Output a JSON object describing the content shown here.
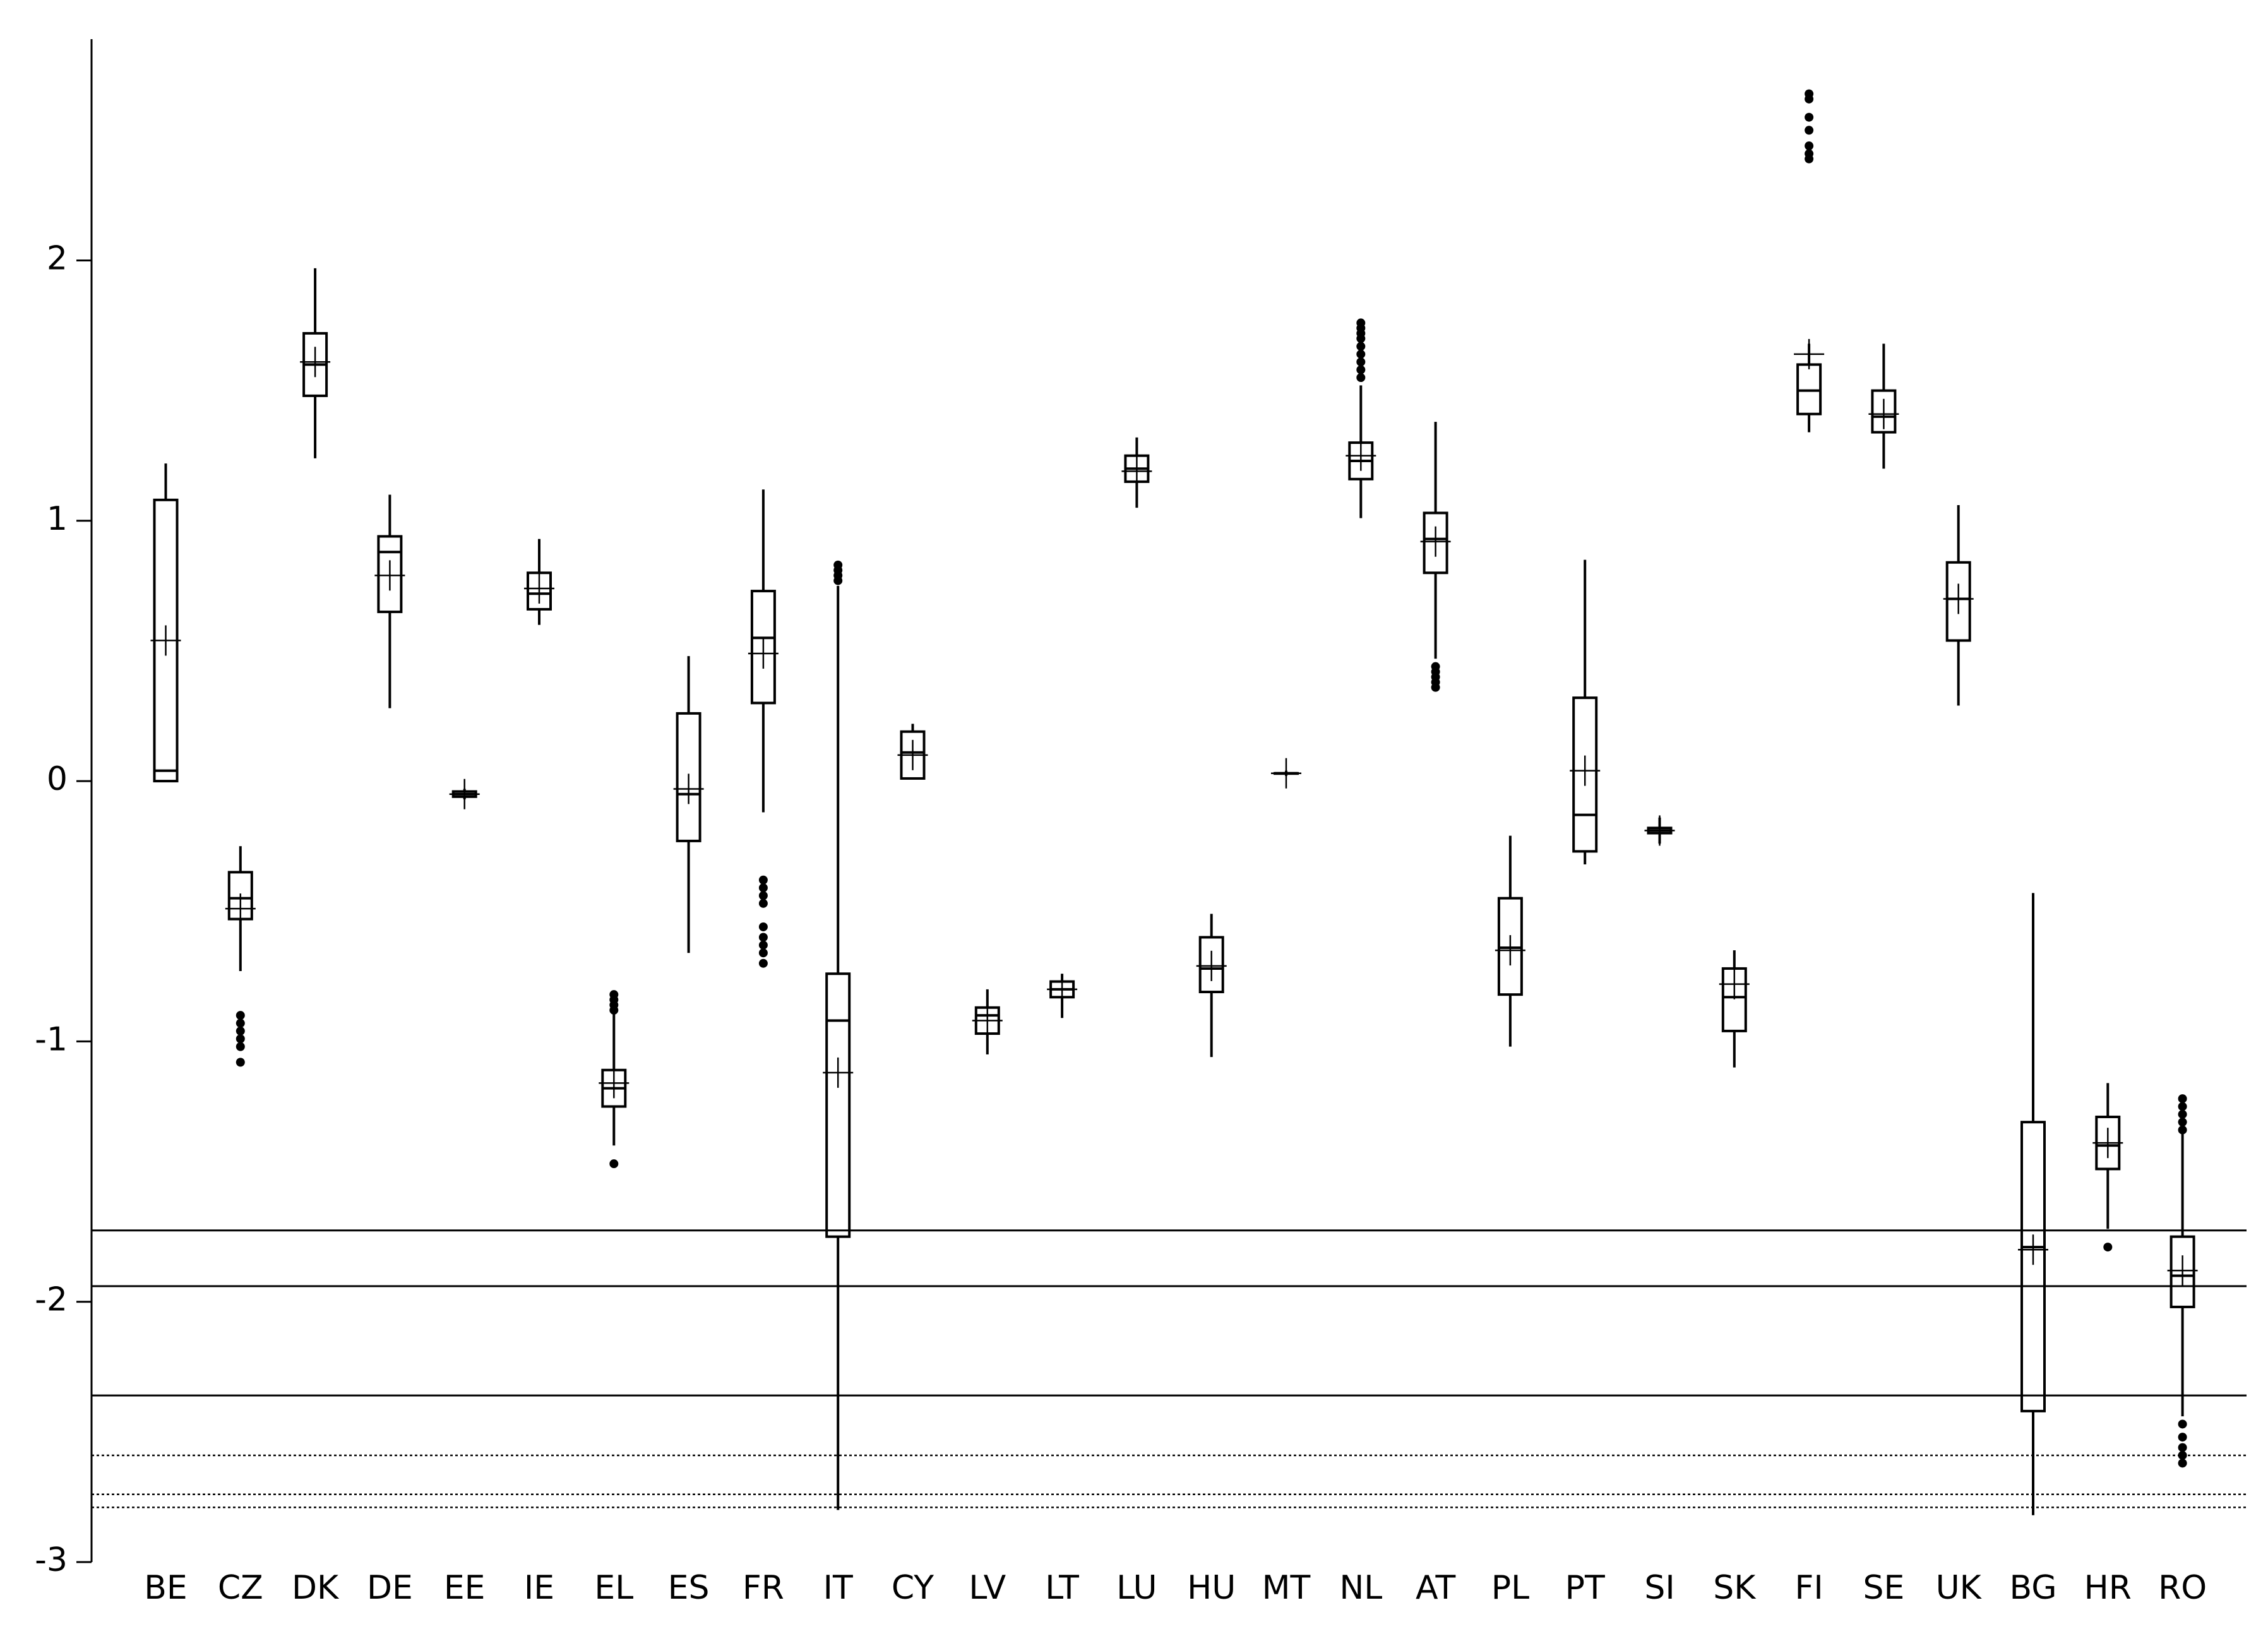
{
  "chart_data": {
    "type": "box",
    "categories": [
      "BE",
      "CZ",
      "DK",
      "DE",
      "EE",
      "IE",
      "EL",
      "ES",
      "FR",
      "IT",
      "CY",
      "LV",
      "LT",
      "LU",
      "HU",
      "MT",
      "NL",
      "AT",
      "PL",
      "PT",
      "SI",
      "SK",
      "FI",
      "SE",
      "UK",
      "BG",
      "HR",
      "RO"
    ],
    "boxes": [
      {
        "whisker_low": 0.0,
        "q1": 0.0,
        "median": 0.04,
        "q3": 1.08,
        "whisker_high": 1.22,
        "mean": 0.54,
        "outliers": []
      },
      {
        "whisker_low": -0.73,
        "q1": -0.53,
        "median": -0.45,
        "q3": -0.35,
        "whisker_high": -0.25,
        "mean": -0.49,
        "outliers": [
          -0.9,
          -0.93,
          -0.96,
          -0.99,
          -1.02,
          -1.08
        ]
      },
      {
        "whisker_low": 1.24,
        "q1": 1.48,
        "median": 1.6,
        "q3": 1.72,
        "whisker_high": 1.97,
        "mean": 1.61,
        "outliers": []
      },
      {
        "whisker_low": 0.28,
        "q1": 0.65,
        "median": 0.88,
        "q3": 0.94,
        "whisker_high": 1.1,
        "mean": 0.79,
        "outliers": []
      },
      {
        "whisker_low": -0.07,
        "q1": -0.06,
        "median": -0.05,
        "q3": -0.04,
        "whisker_high": -0.03,
        "mean": -0.05,
        "outliers": []
      },
      {
        "whisker_low": 0.6,
        "q1": 0.66,
        "median": 0.72,
        "q3": 0.8,
        "whisker_high": 0.93,
        "mean": 0.74,
        "outliers": []
      },
      {
        "whisker_low": -1.4,
        "q1": -1.25,
        "median": -1.18,
        "q3": -1.11,
        "whisker_high": -0.89,
        "mean": -1.16,
        "outliers": [
          -0.82,
          -0.84,
          -0.86,
          -0.88,
          -1.47
        ]
      },
      {
        "whisker_low": -0.66,
        "q1": -0.23,
        "median": -0.05,
        "q3": 0.26,
        "whisker_high": 0.48,
        "mean": -0.03,
        "outliers": []
      },
      {
        "whisker_low": -0.12,
        "q1": 0.3,
        "median": 0.55,
        "q3": 0.73,
        "whisker_high": 1.12,
        "mean": 0.49,
        "outliers": [
          -0.38,
          -0.41,
          -0.44,
          -0.47,
          -0.56,
          -0.6,
          -0.63,
          -0.66,
          -0.7
        ]
      },
      {
        "whisker_low": -2.8,
        "q1": -1.75,
        "median": -0.92,
        "q3": -0.74,
        "whisker_high": 0.75,
        "mean": -1.12,
        "outliers": [
          0.77,
          0.79,
          0.81,
          0.83
        ]
      },
      {
        "whisker_low": 0.01,
        "q1": 0.01,
        "median": 0.11,
        "q3": 0.19,
        "whisker_high": 0.22,
        "mean": 0.1,
        "outliers": []
      },
      {
        "whisker_low": -1.05,
        "q1": -0.97,
        "median": -0.9,
        "q3": -0.87,
        "whisker_high": -0.8,
        "mean": -0.92,
        "outliers": []
      },
      {
        "whisker_low": -0.91,
        "q1": -0.83,
        "median": -0.8,
        "q3": -0.77,
        "whisker_high": -0.74,
        "mean": -0.8,
        "outliers": []
      },
      {
        "whisker_low": 1.05,
        "q1": 1.15,
        "median": 1.2,
        "q3": 1.25,
        "whisker_high": 1.32,
        "mean": 1.19,
        "outliers": []
      },
      {
        "whisker_low": -1.06,
        "q1": -0.81,
        "median": -0.72,
        "q3": -0.6,
        "whisker_high": -0.51,
        "mean": -0.71,
        "outliers": []
      },
      {
        "whisker_low": 0.02,
        "q1": 0.03,
        "median": 0.03,
        "q3": 0.03,
        "whisker_high": 0.04,
        "mean": 0.03,
        "outliers": []
      },
      {
        "whisker_low": 1.01,
        "q1": 1.16,
        "median": 1.23,
        "q3": 1.3,
        "whisker_high": 1.52,
        "mean": 1.25,
        "outliers": [
          1.55,
          1.58,
          1.61,
          1.64,
          1.67,
          1.7,
          1.72,
          1.74,
          1.76
        ]
      },
      {
        "whisker_low": 0.47,
        "q1": 0.8,
        "median": 0.93,
        "q3": 1.03,
        "whisker_high": 1.38,
        "mean": 0.92,
        "outliers": [
          0.36,
          0.38,
          0.4,
          0.42,
          0.44
        ]
      },
      {
        "whisker_low": -1.02,
        "q1": -0.82,
        "median": -0.64,
        "q3": -0.45,
        "whisker_high": -0.21,
        "mean": -0.65,
        "outliers": []
      },
      {
        "whisker_low": -0.32,
        "q1": -0.27,
        "median": -0.13,
        "q3": 0.32,
        "whisker_high": 0.85,
        "mean": 0.04,
        "outliers": []
      },
      {
        "whisker_low": -0.24,
        "q1": -0.2,
        "median": -0.19,
        "q3": -0.18,
        "whisker_high": -0.14,
        "mean": -0.19,
        "outliers": []
      },
      {
        "whisker_low": -1.1,
        "q1": -0.96,
        "median": -0.83,
        "q3": -0.72,
        "whisker_high": -0.65,
        "mean": -0.78,
        "outliers": []
      },
      {
        "whisker_low": 1.34,
        "q1": 1.41,
        "median": 1.5,
        "q3": 1.6,
        "whisker_high": 1.68,
        "mean": 1.64,
        "outliers": [
          2.39,
          2.41,
          2.44,
          2.5,
          2.55,
          2.62,
          2.64
        ]
      },
      {
        "whisker_low": 1.2,
        "q1": 1.34,
        "median": 1.4,
        "q3": 1.5,
        "whisker_high": 1.68,
        "mean": 1.41,
        "outliers": []
      },
      {
        "whisker_low": 0.29,
        "q1": 0.54,
        "median": 0.7,
        "q3": 0.84,
        "whisker_high": 1.06,
        "mean": 0.7,
        "outliers": []
      },
      {
        "whisker_low": -2.82,
        "q1": -2.42,
        "median": -1.79,
        "q3": -1.31,
        "whisker_high": -0.43,
        "mean": -1.8,
        "outliers": []
      },
      {
        "whisker_low": -1.72,
        "q1": -1.49,
        "median": -1.4,
        "q3": -1.29,
        "whisker_high": -1.16,
        "mean": -1.39,
        "outliers": [
          -1.79
        ]
      },
      {
        "whisker_low": -2.44,
        "q1": -2.02,
        "median": -1.9,
        "q3": -1.75,
        "whisker_high": -1.35,
        "mean": -1.88,
        "outliers": [
          -1.22,
          -1.25,
          -1.28,
          -1.31,
          -1.34,
          -2.47,
          -2.52,
          -2.56,
          -2.59,
          -2.62
        ]
      }
    ],
    "reference_lines": [
      {
        "value": -1.726,
        "style": "solid"
      },
      {
        "value": -1.94,
        "style": "solid"
      },
      {
        "value": -2.36,
        "style": "solid"
      },
      {
        "value": -2.59,
        "style": "dotted"
      },
      {
        "value": -2.74,
        "style": "dotted"
      },
      {
        "value": -2.79,
        "style": "dotted"
      }
    ],
    "color": "#000000",
    "ylim": [
      -3,
      2.85
    ],
    "yticks": [
      -3,
      -2,
      -1,
      0,
      1,
      2
    ],
    "grid": false
  }
}
